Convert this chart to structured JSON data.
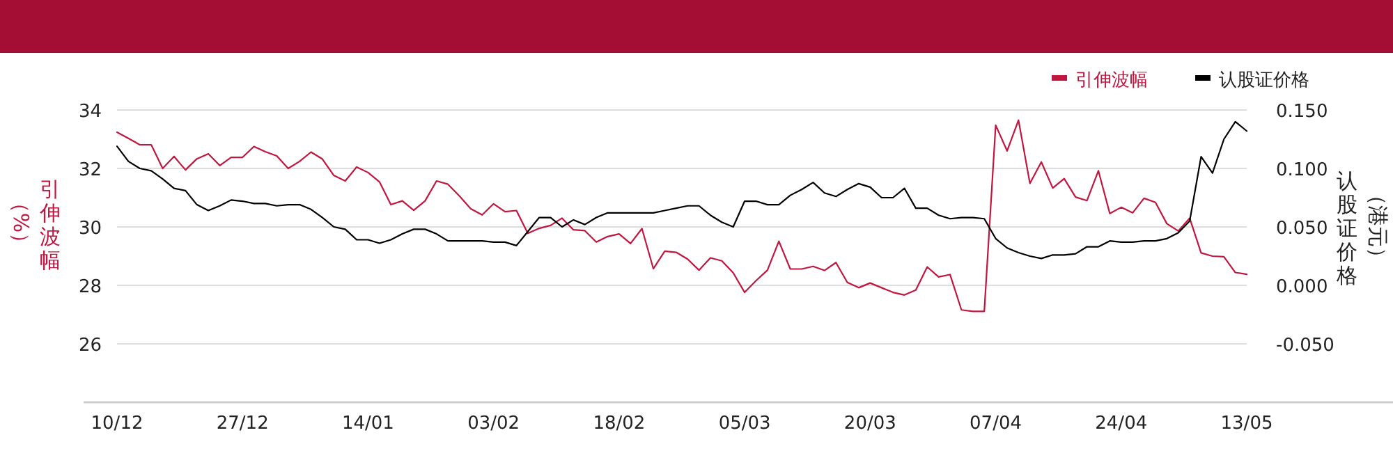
{
  "chart_data": {
    "type": "line",
    "categories": [
      "10/12",
      null,
      null,
      null,
      null,
      null,
      null,
      null,
      null,
      null,
      null,
      "27/12",
      null,
      null,
      null,
      null,
      null,
      null,
      null,
      null,
      null,
      null,
      "14/01",
      null,
      null,
      null,
      null,
      null,
      null,
      null,
      null,
      null,
      null,
      "03/02",
      null,
      null,
      null,
      null,
      null,
      null,
      null,
      null,
      null,
      null,
      "18/02",
      null,
      null,
      null,
      null,
      null,
      null,
      null,
      null,
      null,
      null,
      "05/03",
      null,
      null,
      null,
      null,
      null,
      null,
      null,
      null,
      null,
      null,
      "20/03",
      null,
      null,
      null,
      null,
      null,
      null,
      null,
      null,
      null,
      null,
      "07/04",
      null,
      null,
      null,
      null,
      null,
      null,
      null,
      null,
      null,
      null,
      "24/04",
      null,
      null,
      null,
      null,
      null,
      null,
      null,
      null,
      null,
      null,
      "13/05"
    ],
    "series": [
      {
        "name": "引伸波幅",
        "color": "#c0163f",
        "values": [
          33.24,
          33.03,
          32.81,
          32.81,
          32.0,
          32.41,
          31.95,
          32.33,
          32.5,
          32.1,
          32.38,
          32.38,
          32.75,
          32.57,
          32.43,
          32.0,
          32.24,
          32.56,
          32.32,
          31.76,
          31.57,
          32.05,
          31.86,
          31.54,
          30.76,
          30.89,
          30.57,
          30.89,
          31.57,
          31.46,
          31.06,
          30.62,
          30.41,
          30.79,
          30.52,
          30.56,
          29.78,
          29.95,
          30.05,
          30.3,
          29.9,
          29.87,
          29.48,
          29.67,
          29.76,
          29.43,
          29.94,
          28.57,
          29.17,
          29.13,
          28.9,
          28.52,
          28.94,
          28.84,
          28.43,
          27.76,
          28.16,
          28.52,
          29.51,
          28.56,
          28.56,
          28.65,
          28.51,
          28.78,
          28.1,
          27.92,
          28.08,
          27.92,
          27.76,
          27.67,
          27.84,
          28.63,
          28.29,
          28.37,
          27.16,
          27.11,
          27.11,
          33.48,
          32.6,
          33.65,
          31.49,
          32.22,
          31.33,
          31.65,
          31.02,
          30.9,
          31.92,
          30.46,
          30.67,
          30.48,
          30.98,
          30.84,
          30.11,
          29.86,
          30.3,
          29.11,
          29.0,
          28.98,
          28.44,
          28.38
        ]
      },
      {
        "name": "认股证价格",
        "color": "#000000",
        "axis": "y2",
        "values": [
          0.119,
          0.106,
          0.1,
          0.098,
          0.091,
          0.083,
          0.081,
          0.069,
          0.064,
          0.068,
          0.073,
          0.072,
          0.07,
          0.07,
          0.068,
          0.069,
          0.069,
          0.065,
          0.058,
          0.05,
          0.048,
          0.039,
          0.039,
          0.036,
          0.039,
          0.044,
          0.048,
          0.048,
          0.044,
          0.038,
          0.038,
          0.038,
          0.038,
          0.037,
          0.037,
          0.034,
          0.046,
          0.058,
          0.058,
          0.05,
          0.056,
          0.052,
          0.058,
          0.062,
          0.062,
          0.062,
          0.062,
          0.062,
          0.064,
          0.066,
          0.068,
          0.068,
          0.06,
          0.054,
          0.05,
          0.072,
          0.072,
          0.069,
          0.069,
          0.077,
          0.082,
          0.088,
          0.079,
          0.076,
          0.082,
          0.087,
          0.084,
          0.075,
          0.075,
          0.083,
          0.066,
          0.066,
          0.06,
          0.057,
          0.058,
          0.058,
          0.057,
          0.04,
          0.032,
          0.028,
          0.025,
          0.023,
          0.026,
          0.026,
          0.027,
          0.033,
          0.033,
          0.038,
          0.037,
          0.037,
          0.038,
          0.038,
          0.04,
          0.045,
          0.055,
          0.11,
          0.096,
          0.125,
          0.14,
          0.132
        ]
      }
    ],
    "ylim": [
      24,
      34
    ],
    "yticks": [
      26,
      28,
      30,
      32,
      34
    ],
    "y2lim": [
      -0.1,
      0.15
    ],
    "y2ticks": [
      {
        "value": -0.05,
        "label": "-0.050"
      },
      {
        "value": 0,
        "label": "0.000"
      },
      {
        "value": 0.05,
        "label": "0.050"
      },
      {
        "value": 0.1,
        "label": "0.100"
      },
      {
        "value": 0.15,
        "label": "0.150"
      }
    ],
    "ylabel": "引伸波幅（%）",
    "y2label": "认股证价格（港元）",
    "grid": "y",
    "legend": "top right"
  }
}
